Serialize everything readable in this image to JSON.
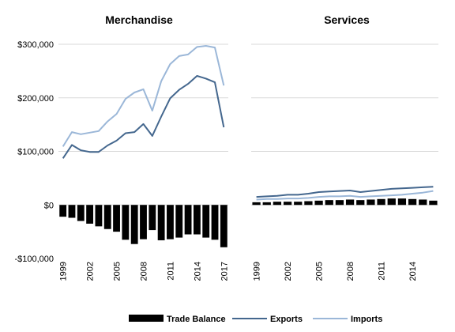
{
  "chart_data": [
    {
      "type": "bar+line",
      "title": "Merchandise",
      "ylim": [
        -100000,
        300000
      ],
      "yticks": [
        -100000,
        0,
        100000,
        200000,
        300000
      ],
      "ytick_labels": [
        "-$100,000",
        "$0",
        "$100,000",
        "$200,000",
        "$300,000"
      ],
      "x": [
        1999,
        2000,
        2001,
        2002,
        2003,
        2004,
        2005,
        2006,
        2007,
        2008,
        2009,
        2010,
        2011,
        2012,
        2013,
        2014,
        2015,
        2016,
        2017
      ],
      "xtick_labels": [
        "1999",
        "2002",
        "2005",
        "2008",
        "2011",
        "2014",
        "2017"
      ],
      "grid": true,
      "series": [
        {
          "name": "Trade Balance",
          "kind": "bar",
          "color": "#000000",
          "values": [
            -22000,
            -24000,
            -30000,
            -35000,
            -40000,
            -45000,
            -50000,
            -65000,
            -73000,
            -64000,
            -47000,
            -66000,
            -64000,
            -61000,
            -55000,
            -55000,
            -61000,
            -65000,
            -79000
          ]
        },
        {
          "name": "Exports",
          "kind": "line",
          "color": "#44678e",
          "values": [
            87000,
            112000,
            102000,
            99000,
            99000,
            111000,
            120000,
            134000,
            136000,
            151000,
            129000,
            165000,
            199000,
            215000,
            226000,
            241000,
            236000,
            229000,
            145000
          ]
        },
        {
          "name": "Imports",
          "kind": "line",
          "color": "#9bb7d8",
          "values": [
            109000,
            136000,
            132000,
            135000,
            138000,
            156000,
            170000,
            198000,
            210000,
            216000,
            176000,
            231000,
            263000,
            278000,
            281000,
            295000,
            297000,
            294000,
            223000
          ]
        }
      ]
    },
    {
      "type": "bar+line",
      "title": "Services",
      "ylim": [
        -100000,
        300000
      ],
      "x": [
        1999,
        2000,
        2001,
        2002,
        2003,
        2004,
        2005,
        2006,
        2007,
        2008,
        2009,
        2010,
        2011,
        2012,
        2013,
        2014,
        2015,
        2016
      ],
      "xtick_labels": [
        "1999",
        "2002",
        "2005",
        "2008",
        "2011",
        "2014"
      ],
      "grid": true,
      "series": [
        {
          "name": "Trade Balance",
          "kind": "bar",
          "color": "#000000",
          "values": [
            5000,
            5000,
            6000,
            6000,
            6000,
            7000,
            8000,
            9000,
            9000,
            10000,
            9000,
            10000,
            11000,
            12000,
            12000,
            11000,
            10000,
            8000
          ]
        },
        {
          "name": "Exports",
          "kind": "line",
          "color": "#44678e",
          "values": [
            15000,
            16000,
            17000,
            19000,
            19000,
            21000,
            24000,
            25000,
            26000,
            27000,
            24000,
            26000,
            28000,
            30000,
            31000,
            32000,
            33000,
            34000
          ]
        },
        {
          "name": "Imports",
          "kind": "line",
          "color": "#9bb7d8",
          "values": [
            10000,
            11000,
            11000,
            12000,
            12000,
            13000,
            15000,
            16000,
            16000,
            17000,
            15000,
            16000,
            17000,
            18000,
            19000,
            21000,
            23000,
            26000
          ]
        }
      ]
    }
  ],
  "legend": {
    "position": "bottom",
    "items": [
      {
        "label": "Trade Balance",
        "kind": "bar",
        "color": "#000000"
      },
      {
        "label": "Exports",
        "kind": "line",
        "color": "#44678e"
      },
      {
        "label": "Imports",
        "kind": "line",
        "color": "#9bb7d8"
      }
    ]
  }
}
